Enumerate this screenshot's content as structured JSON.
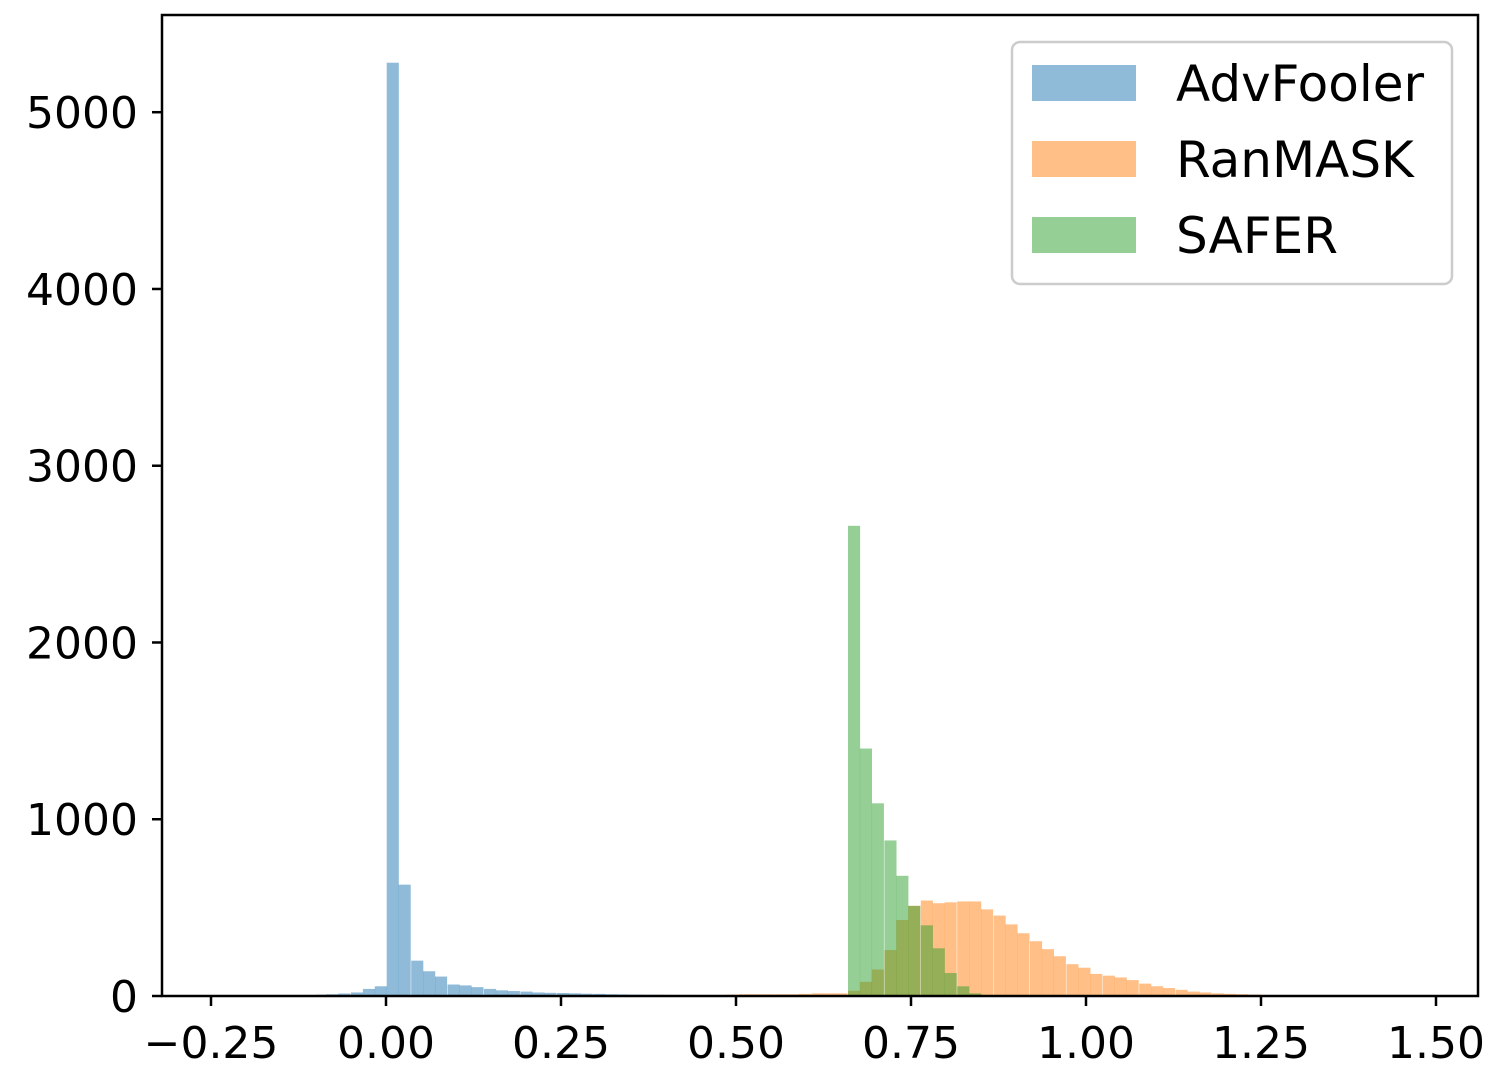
{
  "chart_data": {
    "type": "bar",
    "subtype": "histogram",
    "title": "",
    "xlabel": "",
    "ylabel": "",
    "xlim": [
      -0.32,
      1.56
    ],
    "ylim": [
      0,
      5550
    ],
    "grid": false,
    "legend_position": "top-right",
    "bin_width": 0.0173,
    "x_ticks": [
      {
        "value": -0.25,
        "label": "−0.25"
      },
      {
        "value": 0.0,
        "label": "0.00"
      },
      {
        "value": 0.25,
        "label": "0.25"
      },
      {
        "value": 0.5,
        "label": "0.50"
      },
      {
        "value": 0.75,
        "label": "0.75"
      },
      {
        "value": 1.0,
        "label": "1.00"
      },
      {
        "value": 1.25,
        "label": "1.25"
      },
      {
        "value": 1.5,
        "label": "1.50"
      }
    ],
    "y_ticks": [
      {
        "value": 0,
        "label": "0"
      },
      {
        "value": 1000,
        "label": "1000"
      },
      {
        "value": 2000,
        "label": "2000"
      },
      {
        "value": 3000,
        "label": "3000"
      },
      {
        "value": 4000,
        "label": "4000"
      },
      {
        "value": 5000,
        "label": "5000"
      }
    ],
    "series": [
      {
        "name": "AdvFooler",
        "color": "#1f77b4",
        "bins": [
          {
            "x": -0.18,
            "y": 3
          },
          {
            "x": -0.16,
            "y": 4
          },
          {
            "x": -0.14,
            "y": 5
          },
          {
            "x": -0.12,
            "y": 6
          },
          {
            "x": -0.1,
            "y": 8
          },
          {
            "x": -0.085,
            "y": 10
          },
          {
            "x": -0.068,
            "y": 14
          },
          {
            "x": -0.05,
            "y": 20
          },
          {
            "x": -0.033,
            "y": 40
          },
          {
            "x": -0.016,
            "y": 55
          },
          {
            "x": 0.001,
            "y": 5280
          },
          {
            "x": 0.018,
            "y": 630
          },
          {
            "x": 0.036,
            "y": 200
          },
          {
            "x": 0.053,
            "y": 140
          },
          {
            "x": 0.07,
            "y": 110
          },
          {
            "x": 0.088,
            "y": 65
          },
          {
            "x": 0.105,
            "y": 60
          },
          {
            "x": 0.122,
            "y": 50
          },
          {
            "x": 0.14,
            "y": 40
          },
          {
            "x": 0.157,
            "y": 32
          },
          {
            "x": 0.174,
            "y": 28
          },
          {
            "x": 0.192,
            "y": 25
          },
          {
            "x": 0.209,
            "y": 20
          },
          {
            "x": 0.226,
            "y": 18
          },
          {
            "x": 0.244,
            "y": 17
          },
          {
            "x": 0.261,
            "y": 15
          },
          {
            "x": 0.278,
            "y": 13
          },
          {
            "x": 0.296,
            "y": 12
          },
          {
            "x": 0.313,
            "y": 10
          },
          {
            "x": 0.33,
            "y": 9
          },
          {
            "x": 0.348,
            "y": 8
          },
          {
            "x": 0.365,
            "y": 7
          },
          {
            "x": 0.382,
            "y": 7
          },
          {
            "x": 0.4,
            "y": 6
          },
          {
            "x": 0.417,
            "y": 6
          },
          {
            "x": 0.434,
            "y": 5
          },
          {
            "x": 0.452,
            "y": 5
          },
          {
            "x": 0.469,
            "y": 5
          },
          {
            "x": 0.486,
            "y": 5
          },
          {
            "x": 0.504,
            "y": 5
          },
          {
            "x": 0.521,
            "y": 4
          },
          {
            "x": 0.538,
            "y": 4
          },
          {
            "x": 0.556,
            "y": 4
          },
          {
            "x": 0.573,
            "y": 4
          },
          {
            "x": 0.59,
            "y": 4
          },
          {
            "x": 0.608,
            "y": 3
          },
          {
            "x": 0.625,
            "y": 3
          }
        ]
      },
      {
        "name": "RanMASK",
        "color": "#ff7f0e",
        "bins": [
          {
            "x": 0.4,
            "y": 6
          },
          {
            "x": 0.417,
            "y": 6
          },
          {
            "x": 0.434,
            "y": 6
          },
          {
            "x": 0.452,
            "y": 6
          },
          {
            "x": 0.469,
            "y": 6
          },
          {
            "x": 0.486,
            "y": 8
          },
          {
            "x": 0.504,
            "y": 10
          },
          {
            "x": 0.521,
            "y": 10
          },
          {
            "x": 0.538,
            "y": 10
          },
          {
            "x": 0.556,
            "y": 10
          },
          {
            "x": 0.573,
            "y": 10
          },
          {
            "x": 0.59,
            "y": 12
          },
          {
            "x": 0.608,
            "y": 15
          },
          {
            "x": 0.625,
            "y": 15
          },
          {
            "x": 0.642,
            "y": 15
          },
          {
            "x": 0.66,
            "y": 30
          },
          {
            "x": 0.677,
            "y": 80
          },
          {
            "x": 0.694,
            "y": 150
          },
          {
            "x": 0.712,
            "y": 260
          },
          {
            "x": 0.729,
            "y": 430
          },
          {
            "x": 0.746,
            "y": 510
          },
          {
            "x": 0.764,
            "y": 540
          },
          {
            "x": 0.781,
            "y": 525
          },
          {
            "x": 0.798,
            "y": 530
          },
          {
            "x": 0.816,
            "y": 535
          },
          {
            "x": 0.833,
            "y": 535
          },
          {
            "x": 0.85,
            "y": 490
          },
          {
            "x": 0.868,
            "y": 455
          },
          {
            "x": 0.885,
            "y": 405
          },
          {
            "x": 0.902,
            "y": 355
          },
          {
            "x": 0.92,
            "y": 310
          },
          {
            "x": 0.937,
            "y": 265
          },
          {
            "x": 0.954,
            "y": 225
          },
          {
            "x": 0.972,
            "y": 180
          },
          {
            "x": 0.989,
            "y": 160
          },
          {
            "x": 1.006,
            "y": 125
          },
          {
            "x": 1.024,
            "y": 115
          },
          {
            "x": 1.041,
            "y": 105
          },
          {
            "x": 1.058,
            "y": 90
          },
          {
            "x": 1.076,
            "y": 70
          },
          {
            "x": 1.093,
            "y": 55
          },
          {
            "x": 1.11,
            "y": 45
          },
          {
            "x": 1.128,
            "y": 35
          },
          {
            "x": 1.145,
            "y": 25
          },
          {
            "x": 1.162,
            "y": 20
          },
          {
            "x": 1.18,
            "y": 15
          },
          {
            "x": 1.197,
            "y": 12
          },
          {
            "x": 1.214,
            "y": 10
          },
          {
            "x": 1.232,
            "y": 8
          },
          {
            "x": 1.249,
            "y": 5
          }
        ]
      },
      {
        "name": "SAFER",
        "color": "#2ca02c",
        "bins": [
          {
            "x": 0.66,
            "y": 2660
          },
          {
            "x": 0.677,
            "y": 1400
          },
          {
            "x": 0.694,
            "y": 1090
          },
          {
            "x": 0.712,
            "y": 880
          },
          {
            "x": 0.729,
            "y": 680
          },
          {
            "x": 0.746,
            "y": 510
          },
          {
            "x": 0.764,
            "y": 400
          },
          {
            "x": 0.781,
            "y": 270
          },
          {
            "x": 0.798,
            "y": 130
          },
          {
            "x": 0.816,
            "y": 55
          },
          {
            "x": 0.833,
            "y": 15
          },
          {
            "x": 0.85,
            "y": 5
          }
        ]
      }
    ]
  }
}
